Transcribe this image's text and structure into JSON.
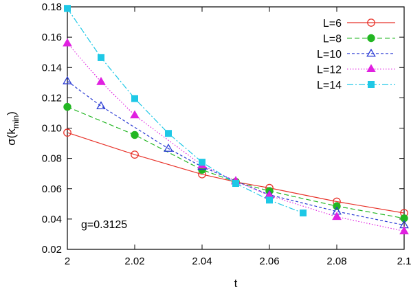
{
  "chart_data": {
    "type": "line",
    "title": "",
    "xlabel": "t",
    "ylabel_main": "σ(k",
    "ylabel_sub": "min",
    "ylabel_close": ")",
    "xlim": [
      2.0,
      2.1
    ],
    "ylim": [
      0.02,
      0.18
    ],
    "xticks": [
      2.0,
      2.02,
      2.04,
      2.06,
      2.08,
      2.1
    ],
    "xtick_labels": [
      "2",
      "2.02",
      "2.04",
      "2.06",
      "2.08",
      "2.1"
    ],
    "yticks": [
      0.02,
      0.04,
      0.06,
      0.08,
      0.1,
      0.12,
      0.14,
      0.16,
      0.18
    ],
    "ytick_labels": [
      "0.02",
      "0.04",
      "0.06",
      "0.08",
      "0.10",
      "0.12",
      "0.14",
      "0.16",
      "0.18"
    ],
    "grid": false,
    "legend_position": "top-right",
    "annotation": "g=0.3125",
    "series": [
      {
        "name": "L=6",
        "color": "#e8332a",
        "marker": "open-circle",
        "dash": "solid",
        "points": [
          [
            2.0,
            0.097
          ],
          [
            2.02,
            0.0825
          ],
          [
            2.04,
            0.0695
          ],
          [
            2.05,
            0.0645
          ],
          [
            2.06,
            0.0605
          ],
          [
            2.08,
            0.0515
          ],
          [
            2.1,
            0.044
          ]
        ]
      },
      {
        "name": "L=8",
        "color": "#22b622",
        "marker": "filled-circle",
        "dash": "dashed",
        "points": [
          [
            2.0,
            0.114
          ],
          [
            2.02,
            0.0955
          ],
          [
            2.04,
            0.0725
          ],
          [
            2.05,
            0.0645
          ],
          [
            2.06,
            0.0585
          ],
          [
            2.08,
            0.0485
          ],
          [
            2.1,
            0.0405
          ]
        ]
      },
      {
        "name": "L=10",
        "color": "#2a3bd4",
        "marker": "open-triangle",
        "dash": "short-dashed",
        "points": [
          [
            2.0,
            0.131
          ],
          [
            2.01,
            0.1145
          ],
          [
            2.03,
            0.0865
          ],
          [
            2.04,
            0.0745
          ],
          [
            2.05,
            0.065
          ],
          [
            2.06,
            0.056
          ],
          [
            2.08,
            0.045
          ],
          [
            2.1,
            0.036
          ]
        ]
      },
      {
        "name": "L=12",
        "color": "#e020e0",
        "marker": "filled-triangle",
        "dash": "dotted",
        "points": [
          [
            2.0,
            0.156
          ],
          [
            2.01,
            0.1305
          ],
          [
            2.02,
            0.1085
          ],
          [
            2.04,
            0.0755
          ],
          [
            2.05,
            0.065
          ],
          [
            2.06,
            0.0555
          ],
          [
            2.08,
            0.0415
          ],
          [
            2.1,
            0.032
          ]
        ]
      },
      {
        "name": "L=14",
        "color": "#1ec8e6",
        "marker": "filled-square",
        "dash": "dash-dot",
        "points": [
          [
            2.0,
            0.179
          ],
          [
            2.01,
            0.1465
          ],
          [
            2.02,
            0.1195
          ],
          [
            2.03,
            0.0965
          ],
          [
            2.04,
            0.0775
          ],
          [
            2.05,
            0.0635
          ],
          [
            2.06,
            0.0525
          ],
          [
            2.07,
            0.044
          ]
        ]
      }
    ]
  }
}
